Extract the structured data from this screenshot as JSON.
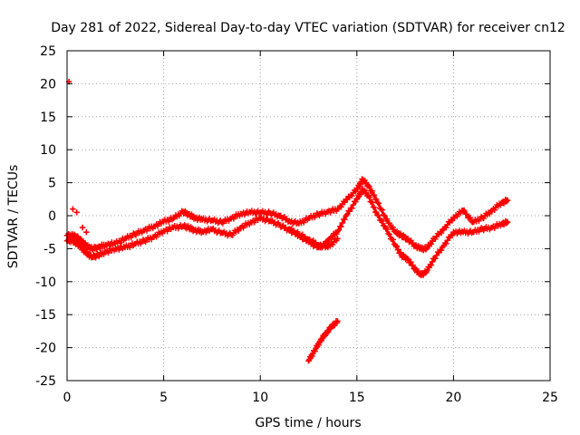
{
  "chart_data": {
    "type": "scatter",
    "title": "Day 281 of 2022, Sidereal Day-to-day VTEC variation (SDTVAR) for receiver cn12",
    "xlabel": "GPS time / hours",
    "ylabel": "SDTVAR / TECUs",
    "xlim": [
      0,
      25
    ],
    "ylim": [
      -25,
      25
    ],
    "xticks": [
      0,
      5,
      10,
      15,
      20,
      25
    ],
    "yticks": [
      -25,
      -20,
      -15,
      -10,
      -5,
      0,
      5,
      10,
      15,
      20,
      25
    ],
    "grid": true,
    "marker": "+",
    "series": [
      {
        "name": "SDTVAR main trace (upper envelope)",
        "color": "#ff0000",
        "x": [
          0.0,
          0.3,
          0.5,
          0.6,
          0.8,
          1.0,
          1.3,
          1.6,
          2.0,
          2.5,
          3.0,
          3.5,
          4.0,
          4.5,
          5.0,
          5.5,
          6.0,
          6.3,
          6.6,
          7.0,
          7.5,
          8.0,
          8.5,
          9.0,
          9.5,
          10.0,
          10.5,
          11.0,
          11.5,
          12.0,
          12.5,
          13.0,
          13.5,
          14.0,
          14.5,
          15.0,
          15.3,
          15.6,
          16.0,
          16.5,
          17.0,
          17.3,
          17.6,
          18.0,
          18.3,
          18.6,
          19.0,
          19.5,
          20.0,
          20.5,
          21.0,
          21.5,
          22.0,
          22.5,
          22.8
        ],
        "y": [
          -3.0,
          -3.0,
          -3.2,
          -3.5,
          -4.0,
          -4.6,
          -5.0,
          -4.8,
          -4.4,
          -4.2,
          -3.5,
          -2.8,
          -2.2,
          -1.6,
          -0.9,
          -0.4,
          0.6,
          0.2,
          -0.3,
          -0.6,
          -0.7,
          -1.0,
          -0.4,
          0.3,
          0.5,
          0.5,
          0.4,
          0.0,
          -0.8,
          -1.2,
          -0.4,
          0.2,
          0.6,
          1.0,
          2.5,
          4.0,
          5.5,
          4.5,
          2.5,
          -0.5,
          -2.5,
          -3.0,
          -3.5,
          -4.5,
          -5.0,
          -5.0,
          -3.5,
          -2.0,
          -0.3,
          0.8,
          -1.0,
          -0.3,
          0.8,
          2.0,
          2.3
        ]
      },
      {
        "name": "SDTVAR main trace (lower envelope)",
        "color": "#ff0000",
        "x": [
          0.0,
          0.3,
          0.5,
          0.8,
          1.0,
          1.3,
          1.6,
          2.0,
          2.5,
          3.0,
          3.5,
          4.0,
          4.5,
          5.0,
          5.5,
          6.0,
          6.3,
          6.6,
          7.0,
          7.5,
          8.0,
          8.5,
          9.0,
          9.5,
          10.0,
          10.5,
          11.0,
          11.5,
          12.0,
          12.5,
          13.0,
          13.3,
          13.6,
          14.0,
          14.5,
          15.0,
          15.3,
          15.6,
          16.0,
          16.5,
          17.0,
          17.3,
          17.6,
          18.0,
          18.3,
          18.6,
          19.0,
          19.5,
          20.0,
          20.5,
          21.0,
          21.5,
          22.0,
          22.5,
          22.8
        ],
        "y": [
          -3.8,
          -3.8,
          -4.2,
          -5.0,
          -5.7,
          -6.3,
          -6.0,
          -5.5,
          -5.0,
          -4.8,
          -4.3,
          -3.8,
          -3.2,
          -2.3,
          -1.8,
          -1.6,
          -1.8,
          -2.2,
          -2.4,
          -2.1,
          -2.6,
          -2.9,
          -1.8,
          -1.0,
          -0.4,
          -0.8,
          -1.4,
          -2.2,
          -3.0,
          -4.0,
          -4.8,
          -4.5,
          -3.5,
          -2.4,
          0.2,
          2.5,
          4.0,
          3.0,
          0.5,
          -2.0,
          -4.5,
          -6.0,
          -6.5,
          -8.0,
          -9.0,
          -8.5,
          -6.5,
          -4.5,
          -2.5,
          -2.5,
          -2.5,
          -2.0,
          -1.8,
          -1.2,
          -1.0
        ]
      },
      {
        "name": "SDTVAR parallel arc near hour 12-14",
        "color": "#ff0000",
        "x": [
          11.5,
          12.0,
          12.5,
          13.0,
          13.5,
          14.0
        ],
        "y": [
          -2.0,
          -2.8,
          -3.6,
          -4.4,
          -4.8,
          -3.5
        ]
      },
      {
        "name": "SDTVAR isolated descending segment",
        "color": "#ff0000",
        "x": [
          12.5,
          12.8,
          13.1,
          13.4,
          13.7,
          14.0
        ],
        "y": [
          -22.0,
          -20.5,
          -19.0,
          -17.8,
          -16.8,
          -16.0
        ]
      },
      {
        "name": "SDTVAR early points",
        "color": "#ff0000",
        "x": [
          0.1,
          0.3,
          0.5,
          0.8,
          1.0
        ],
        "y": [
          20.3,
          1.0,
          0.5,
          -1.8,
          -2.5
        ]
      }
    ]
  }
}
